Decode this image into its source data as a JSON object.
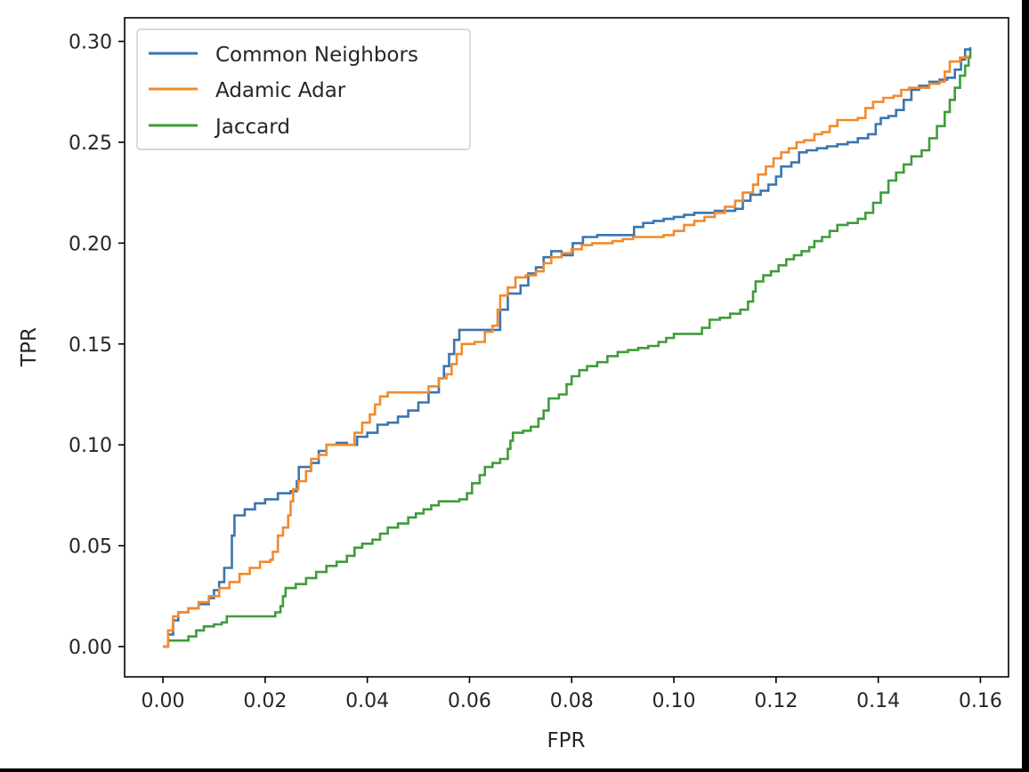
{
  "chart_data": {
    "type": "line",
    "title": "",
    "xlabel": "FPR",
    "ylabel": "TPR",
    "xlim": [
      -0.0075,
      0.1655
    ],
    "ylim": [
      -0.015,
      0.3117
    ],
    "x_ticks": [
      0.0,
      0.02,
      0.04,
      0.06,
      0.08,
      0.1,
      0.12,
      0.14,
      0.16
    ],
    "y_ticks": [
      0.0,
      0.05,
      0.1,
      0.15,
      0.2,
      0.25,
      0.3
    ],
    "x_tick_labels": [
      "0.00",
      "0.02",
      "0.04",
      "0.06",
      "0.08",
      "0.10",
      "0.12",
      "0.14",
      "0.16"
    ],
    "y_tick_labels": [
      "0.00",
      "0.05",
      "0.10",
      "0.15",
      "0.20",
      "0.25",
      "0.30"
    ],
    "grid": false,
    "legend_position": "top-left",
    "step": true,
    "series": [
      {
        "name": "Common Neighbors",
        "color": "#3a75b0",
        "points": [
          [
            0.0,
            0.0
          ],
          [
            0.001,
            0.006
          ],
          [
            0.002,
            0.013
          ],
          [
            0.003,
            0.017
          ],
          [
            0.005,
            0.019
          ],
          [
            0.007,
            0.021
          ],
          [
            0.009,
            0.024
          ],
          [
            0.01,
            0.028
          ],
          [
            0.011,
            0.032
          ],
          [
            0.012,
            0.039
          ],
          [
            0.0135,
            0.055
          ],
          [
            0.014,
            0.065
          ],
          [
            0.016,
            0.068
          ],
          [
            0.018,
            0.071
          ],
          [
            0.02,
            0.073
          ],
          [
            0.0225,
            0.076
          ],
          [
            0.025,
            0.077
          ],
          [
            0.0262,
            0.082
          ],
          [
            0.0266,
            0.089
          ],
          [
            0.029,
            0.091
          ],
          [
            0.0305,
            0.097
          ],
          [
            0.032,
            0.1
          ],
          [
            0.034,
            0.101
          ],
          [
            0.036,
            0.1
          ],
          [
            0.038,
            0.104
          ],
          [
            0.04,
            0.106
          ],
          [
            0.042,
            0.11
          ],
          [
            0.044,
            0.111
          ],
          [
            0.046,
            0.114
          ],
          [
            0.048,
            0.117
          ],
          [
            0.05,
            0.121
          ],
          [
            0.052,
            0.126
          ],
          [
            0.054,
            0.133
          ],
          [
            0.055,
            0.139
          ],
          [
            0.056,
            0.145
          ],
          [
            0.057,
            0.152
          ],
          [
            0.058,
            0.157
          ],
          [
            0.061,
            0.157
          ],
          [
            0.064,
            0.157
          ],
          [
            0.066,
            0.167
          ],
          [
            0.0675,
            0.175
          ],
          [
            0.07,
            0.179
          ],
          [
            0.0715,
            0.185
          ],
          [
            0.073,
            0.188
          ],
          [
            0.0745,
            0.193
          ],
          [
            0.076,
            0.196
          ],
          [
            0.078,
            0.194
          ],
          [
            0.0802,
            0.2
          ],
          [
            0.0822,
            0.203
          ],
          [
            0.085,
            0.204
          ],
          [
            0.088,
            0.204
          ],
          [
            0.09,
            0.204
          ],
          [
            0.0922,
            0.208
          ],
          [
            0.094,
            0.21
          ],
          [
            0.096,
            0.211
          ],
          [
            0.098,
            0.212
          ],
          [
            0.1,
            0.213
          ],
          [
            0.102,
            0.214
          ],
          [
            0.104,
            0.215
          ],
          [
            0.106,
            0.215
          ],
          [
            0.108,
            0.216
          ],
          [
            0.11,
            0.216
          ],
          [
            0.112,
            0.217
          ],
          [
            0.1135,
            0.221
          ],
          [
            0.115,
            0.224
          ],
          [
            0.117,
            0.226
          ],
          [
            0.1185,
            0.229
          ],
          [
            0.12,
            0.233
          ],
          [
            0.121,
            0.238
          ],
          [
            0.123,
            0.24
          ],
          [
            0.1245,
            0.245
          ],
          [
            0.126,
            0.246
          ],
          [
            0.128,
            0.247
          ],
          [
            0.13,
            0.248
          ],
          [
            0.132,
            0.249
          ],
          [
            0.134,
            0.25
          ],
          [
            0.136,
            0.252
          ],
          [
            0.138,
            0.254
          ],
          [
            0.1395,
            0.259
          ],
          [
            0.1405,
            0.262
          ],
          [
            0.142,
            0.263
          ],
          [
            0.1435,
            0.266
          ],
          [
            0.145,
            0.271
          ],
          [
            0.1465,
            0.276
          ],
          [
            0.148,
            0.278
          ],
          [
            0.15,
            0.28
          ],
          [
            0.152,
            0.281
          ],
          [
            0.1535,
            0.282
          ],
          [
            0.155,
            0.286
          ],
          [
            0.1562,
            0.291
          ],
          [
            0.157,
            0.296
          ],
          [
            0.158,
            0.297
          ]
        ]
      },
      {
        "name": "Adamic Adar",
        "color": "#f28a2e",
        "points": [
          [
            0.0,
            0.0
          ],
          [
            0.001,
            0.008
          ],
          [
            0.002,
            0.015
          ],
          [
            0.003,
            0.017
          ],
          [
            0.005,
            0.019
          ],
          [
            0.007,
            0.022
          ],
          [
            0.009,
            0.025
          ],
          [
            0.011,
            0.029
          ],
          [
            0.013,
            0.032
          ],
          [
            0.015,
            0.036
          ],
          [
            0.017,
            0.039
          ],
          [
            0.019,
            0.042
          ],
          [
            0.021,
            0.043
          ],
          [
            0.0215,
            0.047
          ],
          [
            0.0225,
            0.055
          ],
          [
            0.0235,
            0.059
          ],
          [
            0.0245,
            0.065
          ],
          [
            0.025,
            0.072
          ],
          [
            0.0255,
            0.078
          ],
          [
            0.0265,
            0.082
          ],
          [
            0.028,
            0.087
          ],
          [
            0.029,
            0.093
          ],
          [
            0.0305,
            0.095
          ],
          [
            0.032,
            0.1
          ],
          [
            0.034,
            0.1
          ],
          [
            0.036,
            0.1
          ],
          [
            0.0375,
            0.106
          ],
          [
            0.039,
            0.111
          ],
          [
            0.0405,
            0.115
          ],
          [
            0.0415,
            0.12
          ],
          [
            0.0425,
            0.124
          ],
          [
            0.044,
            0.126
          ],
          [
            0.046,
            0.126
          ],
          [
            0.048,
            0.126
          ],
          [
            0.05,
            0.126
          ],
          [
            0.052,
            0.129
          ],
          [
            0.054,
            0.133
          ],
          [
            0.0555,
            0.135
          ],
          [
            0.0565,
            0.14
          ],
          [
            0.0575,
            0.145
          ],
          [
            0.0585,
            0.15
          ],
          [
            0.061,
            0.151
          ],
          [
            0.063,
            0.156
          ],
          [
            0.0645,
            0.159
          ],
          [
            0.0655,
            0.167
          ],
          [
            0.066,
            0.174
          ],
          [
            0.0675,
            0.178
          ],
          [
            0.069,
            0.183
          ],
          [
            0.071,
            0.184
          ],
          [
            0.073,
            0.186
          ],
          [
            0.0745,
            0.19
          ],
          [
            0.076,
            0.193
          ],
          [
            0.078,
            0.195
          ],
          [
            0.08,
            0.197
          ],
          [
            0.082,
            0.199
          ],
          [
            0.084,
            0.2
          ],
          [
            0.086,
            0.2
          ],
          [
            0.088,
            0.201
          ],
          [
            0.09,
            0.202
          ],
          [
            0.092,
            0.203
          ],
          [
            0.094,
            0.203
          ],
          [
            0.096,
            0.203
          ],
          [
            0.098,
            0.204
          ],
          [
            0.1,
            0.206
          ],
          [
            0.102,
            0.209
          ],
          [
            0.104,
            0.211
          ],
          [
            0.106,
            0.213
          ],
          [
            0.108,
            0.215
          ],
          [
            0.11,
            0.218
          ],
          [
            0.112,
            0.221
          ],
          [
            0.1135,
            0.225
          ],
          [
            0.1155,
            0.229
          ],
          [
            0.1165,
            0.234
          ],
          [
            0.118,
            0.238
          ],
          [
            0.1195,
            0.242
          ],
          [
            0.121,
            0.245
          ],
          [
            0.1225,
            0.247
          ],
          [
            0.124,
            0.25
          ],
          [
            0.1255,
            0.251
          ],
          [
            0.1275,
            0.254
          ],
          [
            0.129,
            0.255
          ],
          [
            0.1305,
            0.258
          ],
          [
            0.132,
            0.261
          ],
          [
            0.134,
            0.261
          ],
          [
            0.136,
            0.262
          ],
          [
            0.1375,
            0.267
          ],
          [
            0.139,
            0.27
          ],
          [
            0.141,
            0.272
          ],
          [
            0.143,
            0.273
          ],
          [
            0.1445,
            0.276
          ],
          [
            0.146,
            0.277
          ],
          [
            0.148,
            0.277
          ],
          [
            0.15,
            0.279
          ],
          [
            0.152,
            0.28
          ],
          [
            0.153,
            0.285
          ],
          [
            0.154,
            0.29
          ],
          [
            0.156,
            0.292
          ],
          [
            0.1575,
            0.293
          ]
        ]
      },
      {
        "name": "Jaccard",
        "color": "#3f9c3a",
        "points": [
          [
            0.0,
            0.0
          ],
          [
            0.001,
            0.003
          ],
          [
            0.003,
            0.003
          ],
          [
            0.005,
            0.005
          ],
          [
            0.0065,
            0.008
          ],
          [
            0.008,
            0.01
          ],
          [
            0.01,
            0.011
          ],
          [
            0.0115,
            0.012
          ],
          [
            0.0125,
            0.015
          ],
          [
            0.015,
            0.015
          ],
          [
            0.018,
            0.015
          ],
          [
            0.02,
            0.015
          ],
          [
            0.022,
            0.017
          ],
          [
            0.023,
            0.02
          ],
          [
            0.0235,
            0.025
          ],
          [
            0.024,
            0.029
          ],
          [
            0.026,
            0.031
          ],
          [
            0.028,
            0.034
          ],
          [
            0.03,
            0.037
          ],
          [
            0.032,
            0.04
          ],
          [
            0.034,
            0.042
          ],
          [
            0.036,
            0.045
          ],
          [
            0.0375,
            0.049
          ],
          [
            0.039,
            0.051
          ],
          [
            0.041,
            0.053
          ],
          [
            0.0425,
            0.056
          ],
          [
            0.044,
            0.059
          ],
          [
            0.046,
            0.061
          ],
          [
            0.048,
            0.064
          ],
          [
            0.0495,
            0.066
          ],
          [
            0.051,
            0.068
          ],
          [
            0.0525,
            0.07
          ],
          [
            0.054,
            0.072
          ],
          [
            0.056,
            0.072
          ],
          [
            0.058,
            0.073
          ],
          [
            0.0595,
            0.076
          ],
          [
            0.0605,
            0.081
          ],
          [
            0.062,
            0.085
          ],
          [
            0.063,
            0.089
          ],
          [
            0.0645,
            0.091
          ],
          [
            0.066,
            0.093
          ],
          [
            0.0675,
            0.098
          ],
          [
            0.068,
            0.102
          ],
          [
            0.0685,
            0.106
          ],
          [
            0.0705,
            0.107
          ],
          [
            0.072,
            0.109
          ],
          [
            0.0735,
            0.113
          ],
          [
            0.0745,
            0.117
          ],
          [
            0.0755,
            0.123
          ],
          [
            0.0775,
            0.125
          ],
          [
            0.079,
            0.13
          ],
          [
            0.08,
            0.134
          ],
          [
            0.0815,
            0.137
          ],
          [
            0.083,
            0.139
          ],
          [
            0.085,
            0.141
          ],
          [
            0.087,
            0.144
          ],
          [
            0.089,
            0.146
          ],
          [
            0.091,
            0.147
          ],
          [
            0.093,
            0.148
          ],
          [
            0.095,
            0.149
          ],
          [
            0.097,
            0.151
          ],
          [
            0.0985,
            0.153
          ],
          [
            0.1,
            0.155
          ],
          [
            0.102,
            0.155
          ],
          [
            0.104,
            0.155
          ],
          [
            0.1055,
            0.158
          ],
          [
            0.107,
            0.162
          ],
          [
            0.109,
            0.163
          ],
          [
            0.111,
            0.165
          ],
          [
            0.113,
            0.167
          ],
          [
            0.1145,
            0.171
          ],
          [
            0.1155,
            0.176
          ],
          [
            0.116,
            0.181
          ],
          [
            0.1175,
            0.184
          ],
          [
            0.119,
            0.186
          ],
          [
            0.1205,
            0.189
          ],
          [
            0.122,
            0.192
          ],
          [
            0.1235,
            0.194
          ],
          [
            0.125,
            0.196
          ],
          [
            0.1265,
            0.198
          ],
          [
            0.1275,
            0.201
          ],
          [
            0.129,
            0.203
          ],
          [
            0.1305,
            0.206
          ],
          [
            0.132,
            0.209
          ],
          [
            0.134,
            0.21
          ],
          [
            0.136,
            0.212
          ],
          [
            0.1375,
            0.215
          ],
          [
            0.139,
            0.22
          ],
          [
            0.1405,
            0.225
          ],
          [
            0.142,
            0.231
          ],
          [
            0.1435,
            0.235
          ],
          [
            0.145,
            0.239
          ],
          [
            0.1465,
            0.243
          ],
          [
            0.1485,
            0.246
          ],
          [
            0.15,
            0.252
          ],
          [
            0.1515,
            0.258
          ],
          [
            0.153,
            0.265
          ],
          [
            0.154,
            0.271
          ],
          [
            0.155,
            0.277
          ],
          [
            0.156,
            0.283
          ],
          [
            0.157,
            0.288
          ],
          [
            0.1577,
            0.292
          ],
          [
            0.158,
            0.297
          ]
        ]
      }
    ]
  }
}
